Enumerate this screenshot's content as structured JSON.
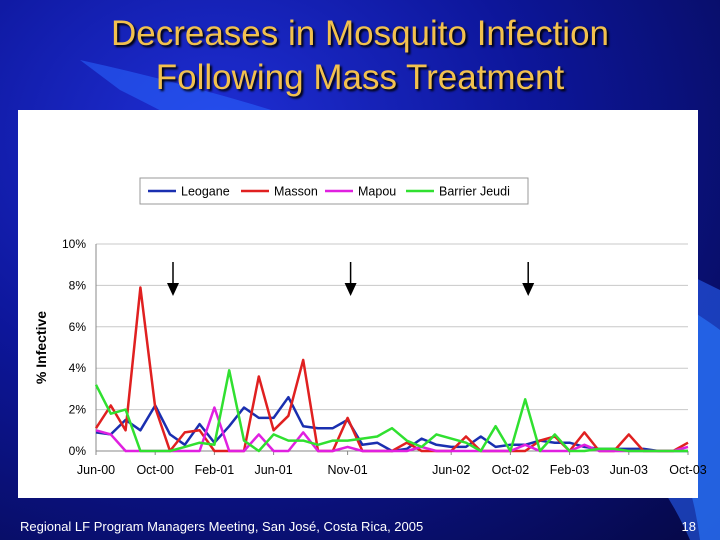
{
  "slide": {
    "title_line1": "Decreases in Mosquito Infection",
    "title_line2": "Following Mass Treatment",
    "footer": "Regional LF Program Managers Meeting, San José, Costa Rica, 2005",
    "page_number": "18"
  },
  "chart_data": {
    "type": "line",
    "title": "",
    "xlabel": "",
    "ylabel": "% Infective",
    "ylim": [
      0,
      10
    ],
    "yticks": [
      "0%",
      "2%",
      "4%",
      "6%",
      "8%",
      "10%"
    ],
    "x_tick_labels": [
      "Jun-00",
      "Oct-00",
      "Feb-01",
      "Jun-01",
      "Nov-01",
      "Jun-02",
      "Oct-02",
      "Feb-03",
      "Jun-03",
      "Oct-03"
    ],
    "x_tick_month_index": [
      0,
      4,
      8,
      12,
      17,
      24,
      28,
      32,
      36,
      40
    ],
    "x_month_count": 41,
    "legend_position": "top",
    "treatment_arrows_month_index": [
      5,
      17,
      29
    ],
    "series": [
      {
        "name": "Leogane",
        "color": "#1a2fb0",
        "values": [
          0.9,
          0.8,
          1.5,
          1.0,
          2.2,
          0.8,
          0.3,
          1.3,
          0.4,
          1.2,
          2.1,
          1.6,
          1.6,
          2.6,
          1.2,
          1.1,
          1.1,
          1.5,
          0.3,
          0.4,
          0.0,
          0.1,
          0.6,
          0.3,
          0.2,
          0.2,
          0.7,
          0.2,
          0.3,
          0.3,
          0.5,
          0.4,
          0.4,
          0.2,
          0.1,
          0.1,
          0.1,
          0.1,
          0.0,
          0.0,
          0.0
        ]
      },
      {
        "name": "Masson",
        "color": "#e02020",
        "values": [
          1.1,
          2.2,
          1.0,
          7.9,
          2.1,
          0.0,
          0.9,
          1.0,
          0.0,
          0.0,
          0.0,
          3.6,
          1.0,
          1.7,
          4.4,
          0.0,
          0.0,
          1.6,
          0.0,
          0.0,
          0.0,
          0.4,
          0.0,
          0.0,
          0.0,
          0.7,
          0.0,
          0.0,
          0.0,
          0.0,
          0.5,
          0.7,
          0.0,
          0.9,
          0.0,
          0.0,
          0.8,
          0.0,
          0.0,
          0.0,
          0.4
        ]
      },
      {
        "name": "Mapou",
        "color": "#e020e0",
        "values": [
          1.0,
          0.8,
          0.0,
          0.0,
          0.0,
          0.0,
          0.0,
          0.0,
          2.1,
          0.0,
          0.0,
          0.8,
          0.0,
          0.0,
          0.9,
          0.0,
          0.0,
          0.2,
          0.0,
          0.0,
          0.0,
          0.0,
          0.2,
          0.0,
          0.0,
          0.0,
          0.0,
          0.0,
          0.0,
          0.3,
          0.0,
          0.0,
          0.0,
          0.3,
          0.0,
          0.0,
          0.0,
          0.0,
          0.0,
          0.0,
          0.2
        ]
      },
      {
        "name": "Barrier Jeudi",
        "color": "#30e030",
        "values": [
          3.2,
          1.8,
          2.0,
          0.0,
          0.0,
          0.0,
          0.2,
          0.4,
          0.3,
          3.9,
          0.5,
          0.0,
          0.8,
          0.5,
          0.5,
          0.3,
          0.5,
          0.5,
          0.6,
          0.7,
          1.1,
          0.5,
          0.2,
          0.8,
          0.6,
          0.4,
          0.0,
          1.2,
          0.0,
          2.5,
          0.0,
          0.8,
          0.0,
          0.0,
          0.1,
          0.1,
          0.0,
          0.0,
          0.0,
          0.0,
          0.0
        ]
      }
    ]
  }
}
